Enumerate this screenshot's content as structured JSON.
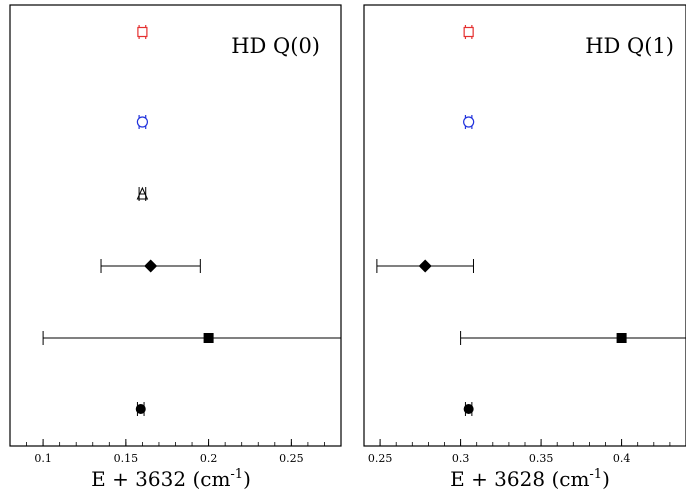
{
  "chart_data": [
    {
      "type": "scatter",
      "title": "HD Q(0)",
      "xlabel": "E + 3632 (cm",
      "xlabel_sup": "-1",
      "xlabel_close": ")",
      "xlim": [
        0.08,
        0.28
      ],
      "xticks": [
        0.1,
        0.15,
        0.2,
        0.25
      ],
      "xtick_labels": [
        "0.1",
        "0.15",
        "0.2",
        "0.25"
      ],
      "grid": false,
      "points": [
        {
          "row": 1,
          "x": 0.16,
          "xerr": 0.002,
          "marker": "open-square",
          "color": "#e53030"
        },
        {
          "row": 2,
          "x": 0.16,
          "xerr": 0.002,
          "marker": "open-circle",
          "color": "#2233dd"
        },
        {
          "row": 3,
          "x": 0.16,
          "xerr": 0.002,
          "marker": "open-triangle",
          "color": "#000000"
        },
        {
          "row": 4,
          "x": 0.165,
          "xerr": 0.03,
          "marker": "filled-diamond",
          "color": "#000000"
        },
        {
          "row": 5,
          "x": 0.2,
          "xerr": 0.1,
          "marker": "filled-square",
          "color": "#000000"
        },
        {
          "row": 6,
          "x": 0.159,
          "xerr": 0.002,
          "marker": "filled-circle",
          "color": "#000000"
        }
      ]
    },
    {
      "type": "scatter",
      "title": "HD Q(1)",
      "xlabel": "E + 3628 (cm",
      "xlabel_sup": "-1",
      "xlabel_close": ")",
      "xlim": [
        0.24,
        0.44
      ],
      "xticks": [
        0.25,
        0.3,
        0.35,
        0.4
      ],
      "xtick_labels": [
        "0.25",
        "0.3",
        "0.35",
        "0.4"
      ],
      "grid": false,
      "points": [
        {
          "row": 1,
          "x": 0.305,
          "xerr": 0.002,
          "marker": "open-square",
          "color": "#e53030"
        },
        {
          "row": 2,
          "x": 0.305,
          "xerr": 0.002,
          "marker": "open-circle",
          "color": "#2233dd"
        },
        {
          "row": 4,
          "x": 0.278,
          "xerr": 0.03,
          "marker": "filled-diamond",
          "color": "#000000"
        },
        {
          "row": 5,
          "x": 0.4,
          "xerr": 0.1,
          "marker": "filled-square",
          "color": "#000000"
        },
        {
          "row": 6,
          "x": 0.305,
          "xerr": 0.002,
          "marker": "filled-circle",
          "color": "#000000"
        }
      ]
    }
  ]
}
